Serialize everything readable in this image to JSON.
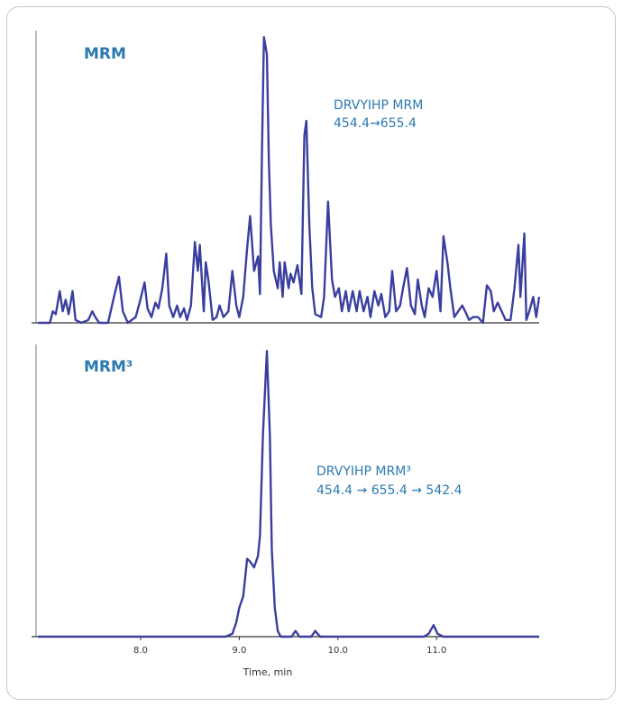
{
  "chart_data": [
    {
      "type": "line",
      "title": "MRM",
      "annotations": [
        "DRVYIHP MRM",
        "454.4→655.4"
      ],
      "xlim": [
        6.94,
        12.04
      ],
      "ylim": [
        0,
        100
      ],
      "color": "#3a3f9e",
      "x": [
        6.96,
        7.08,
        7.11,
        7.14,
        7.18,
        7.21,
        7.24,
        7.27,
        7.31,
        7.34,
        7.4,
        7.47,
        7.51,
        7.54,
        7.58,
        7.67,
        7.73,
        7.78,
        7.82,
        7.87,
        7.95,
        7.99,
        8.04,
        8.07,
        8.11,
        8.15,
        8.18,
        8.22,
        8.26,
        8.29,
        8.33,
        8.37,
        8.4,
        8.44,
        8.47,
        8.51,
        8.55,
        8.58,
        8.6,
        8.64,
        8.66,
        8.69,
        8.73,
        8.77,
        8.8,
        8.84,
        8.89,
        8.93,
        8.97,
        9.0,
        9.04,
        9.08,
        9.11,
        9.15,
        9.19,
        9.21,
        9.23,
        9.25,
        9.28,
        9.3,
        9.32,
        9.35,
        9.39,
        9.41,
        9.44,
        9.46,
        9.5,
        9.52,
        9.55,
        9.59,
        9.63,
        9.66,
        9.68,
        9.71,
        9.74,
        9.77,
        9.83,
        9.86,
        9.9,
        9.94,
        9.97,
        10.01,
        10.04,
        10.08,
        10.11,
        10.15,
        10.19,
        10.22,
        10.26,
        10.3,
        10.33,
        10.37,
        10.41,
        10.44,
        10.48,
        10.52,
        10.55,
        10.59,
        10.63,
        10.66,
        10.7,
        10.74,
        10.78,
        10.81,
        10.85,
        10.88,
        10.92,
        10.96,
        11.0,
        11.04,
        11.07,
        11.11,
        11.14,
        11.18,
        11.22,
        11.26,
        11.29,
        11.33,
        11.37,
        11.42,
        11.47,
        11.51,
        11.55,
        11.58,
        11.62,
        11.66,
        11.7,
        11.75,
        11.79,
        11.83,
        11.85,
        11.89,
        11.91,
        11.94,
        11.98,
        12.01,
        12.04
      ],
      "values": [
        0,
        0,
        4,
        3,
        11,
        4,
        8,
        3,
        11,
        1,
        0,
        1,
        4,
        2,
        0,
        0,
        9,
        16,
        4,
        0,
        2,
        7,
        14,
        5,
        2,
        7,
        5,
        12,
        24,
        6,
        2,
        6,
        2,
        5,
        1,
        6,
        28,
        18,
        27,
        4,
        21,
        14,
        1,
        2,
        6,
        2,
        4,
        18,
        6,
        2,
        9,
        26,
        37,
        18,
        23,
        10,
        59,
        99,
        93,
        56,
        34,
        18,
        12,
        21,
        9,
        21,
        12,
        17,
        14,
        20,
        10,
        65,
        70,
        34,
        12,
        3,
        2,
        9,
        42,
        15,
        9,
        12,
        4,
        11,
        4,
        11,
        4,
        11,
        4,
        9,
        2,
        11,
        6,
        10,
        2,
        4,
        18,
        4,
        6,
        12,
        19,
        6,
        3,
        15,
        6,
        2,
        12,
        9,
        18,
        4,
        30,
        21,
        12,
        2,
        4,
        6,
        4,
        1,
        2,
        2,
        0,
        13,
        11,
        4,
        7,
        4,
        1,
        1,
        12,
        27,
        9,
        31,
        1,
        4,
        9,
        2,
        9
      ]
    },
    {
      "type": "line",
      "title": "MRM³",
      "annotations": [
        "DRVYIHP MRM³",
        "454.4 → 655.4 → 542.4"
      ],
      "xlim": [
        6.94,
        12.04
      ],
      "ylim": [
        0,
        100
      ],
      "color": "#3a3f9e",
      "xlabel": "Time, min",
      "xticks": [
        {
          "value": 8,
          "label": "8.0"
        },
        {
          "value": 9,
          "label": "9.0"
        },
        {
          "value": 10,
          "label": "10.0"
        },
        {
          "value": 11,
          "label": "11.0"
        }
      ],
      "x": [
        6.96,
        8.86,
        8.93,
        8.97,
        9.0,
        9.04,
        9.08,
        9.11,
        9.15,
        9.19,
        9.21,
        9.24,
        9.28,
        9.31,
        9.33,
        9.36,
        9.39,
        9.42,
        9.53,
        9.57,
        9.61,
        9.73,
        9.77,
        9.82,
        10.87,
        10.92,
        10.97,
        11.01,
        11.07,
        12.04
      ],
      "values": [
        0,
        0,
        1,
        5,
        10,
        14,
        27,
        26,
        24,
        28,
        35,
        70,
        99,
        70,
        30,
        10,
        2,
        0,
        0,
        2,
        0,
        0,
        2,
        0,
        0,
        1,
        4,
        1,
        0,
        0
      ]
    }
  ]
}
